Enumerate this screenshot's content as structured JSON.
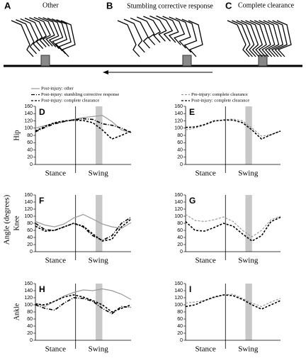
{
  "illustration": {
    "panels": [
      {
        "letter": "A",
        "label": "Other"
      },
      {
        "letter": "B",
        "label": "Stumbling corrective response"
      },
      {
        "letter": "C",
        "label": "Complete clearance"
      }
    ]
  },
  "y_axis_label": "Angle (degrees)",
  "chart_data": [
    {
      "type": "line",
      "letter": "D",
      "ylabel": "Hip",
      "legend": true,
      "x": [
        0,
        10,
        20,
        30,
        40,
        50,
        60,
        70,
        80,
        90,
        100
      ],
      "xlim": [
        0,
        100
      ],
      "ylim": [
        0,
        160
      ],
      "yticks": [
        0,
        20,
        40,
        60,
        80,
        100,
        120,
        140,
        160
      ],
      "stance_end": 42,
      "shade": [
        63,
        70
      ],
      "x_labels": [
        "Stance",
        "Swing"
      ],
      "series": [
        {
          "name": "Post-injury: other",
          "color": "#999999",
          "dash": "solid",
          "values": [
            100,
            107,
            113,
            118,
            124,
            129,
            132,
            135,
            118,
            95,
            88
          ]
        },
        {
          "name": "Post-injury: stumbling corrective response",
          "color": "#000000",
          "dash": "dashdot",
          "values": [
            90,
            102,
            112,
            118,
            123,
            126,
            124,
            112,
            108,
            100,
            88
          ]
        },
        {
          "name": "Post-injury: complete clearance",
          "color": "#000000",
          "dash": "dashed",
          "values": [
            92,
            105,
            115,
            120,
            122,
            121,
            115,
            95,
            70,
            80,
            92
          ]
        }
      ]
    },
    {
      "type": "line",
      "letter": "E",
      "legend": true,
      "x": [
        0,
        10,
        20,
        30,
        40,
        50,
        60,
        70,
        80,
        90,
        100
      ],
      "xlim": [
        0,
        100
      ],
      "ylim": [
        0,
        160
      ],
      "yticks": [
        0,
        20,
        40,
        60,
        80,
        100,
        120,
        140,
        160
      ],
      "stance_end": 42,
      "shade": [
        63,
        70
      ],
      "x_labels": [
        "Stance",
        "Swing"
      ],
      "series": [
        {
          "name": "Pre-injury: complete clearance",
          "color": "#999999",
          "dash": "dashed",
          "values": [
            95,
            100,
            108,
            118,
            123,
            125,
            120,
            100,
            78,
            82,
            92
          ]
        },
        {
          "name": "Post-injury: complete clearance",
          "color": "#000000",
          "dash": "dashed",
          "values": [
            102,
            103,
            110,
            120,
            122,
            122,
            115,
            95,
            70,
            82,
            92
          ]
        }
      ]
    },
    {
      "type": "line",
      "letter": "F",
      "ylabel": "Knee",
      "x": [
        0,
        10,
        20,
        30,
        40,
        50,
        60,
        70,
        80,
        90,
        100
      ],
      "xlim": [
        0,
        100
      ],
      "ylim": [
        0,
        160
      ],
      "yticks": [
        0,
        20,
        40,
        60,
        80,
        100,
        120,
        140,
        160
      ],
      "stance_end": 42,
      "shade": [
        63,
        70
      ],
      "x_labels": [
        "Stance",
        "Swing"
      ],
      "series": [
        {
          "color": "#999999",
          "dash": "solid",
          "values": [
            85,
            75,
            70,
            78,
            95,
            105,
            92,
            78,
            70,
            66,
            82
          ]
        },
        {
          "color": "#000000",
          "dash": "dashdot",
          "values": [
            80,
            62,
            60,
            70,
            80,
            70,
            45,
            32,
            45,
            80,
            97
          ]
        },
        {
          "color": "#000000",
          "dash": "dashed",
          "values": [
            72,
            58,
            60,
            70,
            80,
            72,
            50,
            30,
            35,
            70,
            92
          ]
        }
      ]
    },
    {
      "type": "line",
      "letter": "G",
      "x": [
        0,
        10,
        20,
        30,
        40,
        50,
        60,
        70,
        80,
        90,
        100
      ],
      "xlim": [
        0,
        100
      ],
      "ylim": [
        0,
        160
      ],
      "yticks": [
        0,
        20,
        40,
        60,
        80,
        100,
        120,
        140,
        160
      ],
      "stance_end": 42,
      "shade": [
        63,
        70
      ],
      "x_labels": [
        "Stance",
        "Swing"
      ],
      "series": [
        {
          "color": "#999999",
          "dash": "dashed",
          "values": [
            105,
            88,
            85,
            90,
            98,
            85,
            60,
            42,
            60,
            90,
            100
          ]
        },
        {
          "color": "#000000",
          "dash": "dashed",
          "values": [
            85,
            60,
            58,
            68,
            80,
            72,
            50,
            30,
            45,
            85,
            97
          ]
        }
      ]
    },
    {
      "type": "line",
      "letter": "H",
      "ylabel": "Ankle",
      "x": [
        0,
        10,
        20,
        30,
        40,
        50,
        60,
        70,
        80,
        90,
        100
      ],
      "xlim": [
        0,
        100
      ],
      "ylim": [
        0,
        160
      ],
      "yticks": [
        0,
        20,
        40,
        60,
        80,
        100,
        120,
        140,
        160
      ],
      "stance_end": 42,
      "shade": [
        63,
        70
      ],
      "x_labels": [
        "Stance",
        "Swing"
      ],
      "series": [
        {
          "color": "#999999",
          "dash": "solid",
          "values": [
            105,
            95,
            110,
            125,
            135,
            142,
            140,
            145,
            140,
            130,
            115
          ]
        },
        {
          "color": "#000000",
          "dash": "dashdot",
          "values": [
            100,
            90,
            85,
            105,
            120,
            118,
            110,
            90,
            75,
            95,
            93
          ]
        },
        {
          "color": "#000000",
          "dash": "dashed",
          "values": [
            102,
            100,
            110,
            122,
            128,
            122,
            112,
            100,
            80,
            90,
            100
          ]
        }
      ]
    },
    {
      "type": "line",
      "letter": "I",
      "x": [
        0,
        10,
        20,
        30,
        40,
        50,
        60,
        70,
        80,
        90,
        100
      ],
      "xlim": [
        0,
        100
      ],
      "ylim": [
        0,
        160
      ],
      "yticks": [
        0,
        20,
        40,
        60,
        80,
        100,
        120,
        140,
        160
      ],
      "stance_end": 42,
      "shade": [
        63,
        70
      ],
      "x_labels": [
        "Stance",
        "Swing"
      ],
      "series": [
        {
          "color": "#999999",
          "dash": "dashed",
          "values": [
            105,
            108,
            112,
            120,
            128,
            130,
            118,
            105,
            95,
            108,
            118
          ]
        },
        {
          "color": "#000000",
          "dash": "dashed",
          "values": [
            95,
            100,
            112,
            122,
            128,
            126,
            115,
            100,
            88,
            100,
            112
          ]
        }
      ]
    }
  ]
}
